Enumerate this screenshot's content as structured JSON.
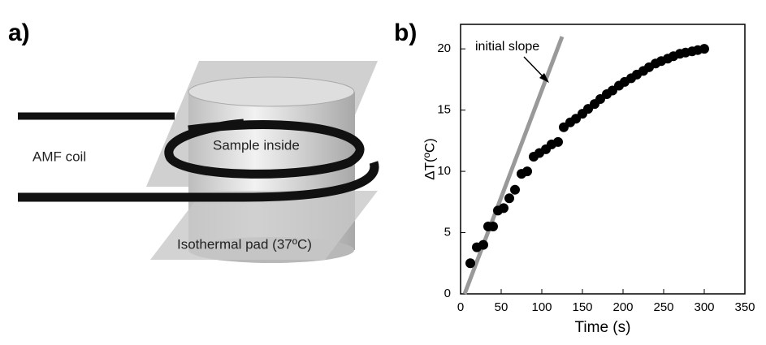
{
  "panel_a": {
    "label": "a)",
    "coil_label": "AMF coil",
    "sample_label": "Sample inside",
    "pad_label": "Isothermal pad (37ºC)"
  },
  "chart_data": {
    "type": "scatter",
    "panel_label": "b)",
    "x_label": "Time (s)",
    "y_label": "ΔT(ºC)",
    "annotation": "initial slope",
    "x": [
      12,
      20,
      28,
      34,
      40,
      46,
      53,
      60,
      67,
      75,
      82,
      90,
      97,
      105,
      112,
      120,
      127,
      135,
      142,
      150,
      157,
      165,
      172,
      180,
      187,
      195,
      202,
      210,
      217,
      225,
      232,
      240,
      247,
      255,
      262,
      270,
      277,
      285,
      292,
      300
    ],
    "series": [
      {
        "color": "#000000",
        "values": [
          2.5,
          3.8,
          4,
          5.5,
          5.5,
          6.8,
          7,
          7.8,
          8.5,
          9.8,
          10,
          11.2,
          11.5,
          11.8,
          12.2,
          12.4,
          13.6,
          14,
          14.3,
          14.7,
          15.1,
          15.5,
          15.9,
          16.3,
          16.6,
          17,
          17.3,
          17.6,
          17.9,
          18.2,
          18.5,
          18.8,
          19,
          19.2,
          19.4,
          19.6,
          19.7,
          19.8,
          19.9,
          20
        ]
      }
    ],
    "slope_line": {
      "color": "#999999",
      "x": [
        5,
        125
      ],
      "values": [
        0,
        21
      ]
    },
    "xlim": [
      0,
      350
    ],
    "xticks": [
      0,
      50,
      100,
      150,
      200,
      250,
      300,
      350
    ],
    "ylim": [
      0,
      22
    ],
    "yticks": [
      0,
      5,
      10,
      15,
      20
    ]
  }
}
